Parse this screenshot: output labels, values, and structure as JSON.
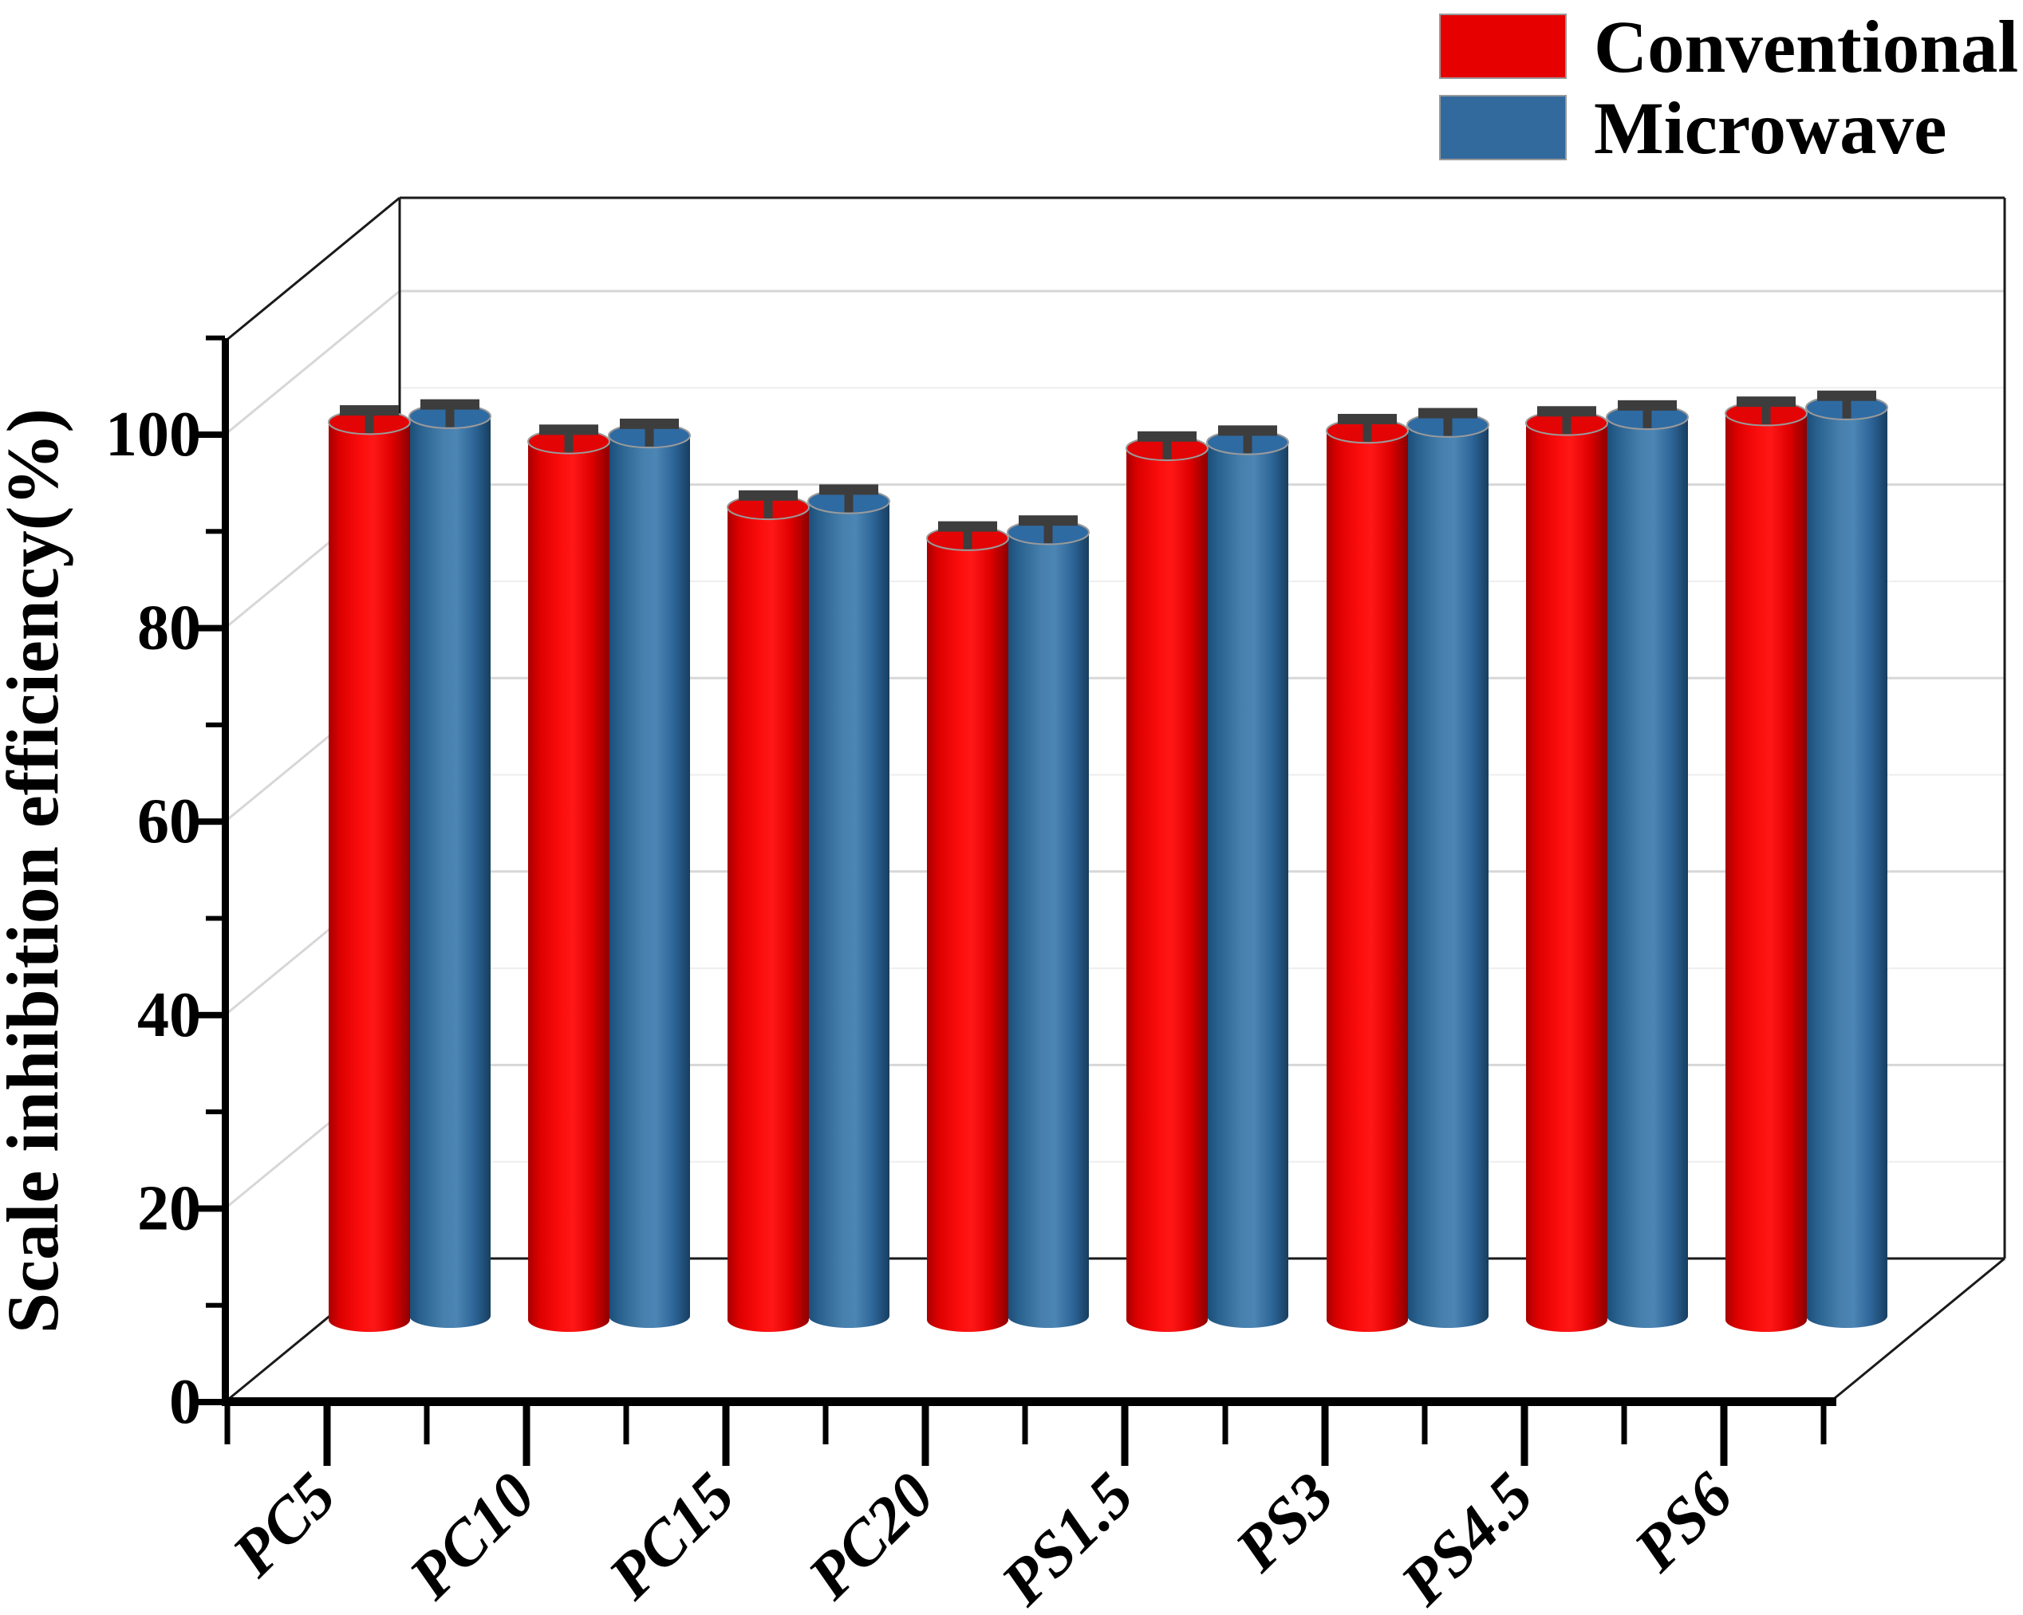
{
  "figure": {
    "kind": "scientific 3D cylinder bar chart",
    "background": "#ffffff"
  },
  "chart_data": {
    "type": "bar",
    "style": "3d-cylinder",
    "title": "",
    "xlabel": "",
    "ylabel": "Scale inhibition efficiency(%)",
    "categories": [
      "PC5",
      "PC10",
      "PC15",
      "PC20",
      "PS1.5",
      "PS3",
      "PS4.5",
      "PS6"
    ],
    "series": [
      {
        "name": "Conventional",
        "color": "#e60000",
        "values": [
          92.8,
          90.8,
          84.0,
          80.8,
          90.1,
          91.9,
          92.7,
          93.7
        ],
        "error": 0.6
      },
      {
        "name": "Microwave",
        "color": "#336a9e",
        "values": [
          93.0,
          91.0,
          84.2,
          81.0,
          90.3,
          92.1,
          92.9,
          93.9
        ],
        "error": 0.6
      }
    ],
    "ylim": [
      0,
      110
    ],
    "yticks": [
      0,
      20,
      40,
      60,
      80,
      100
    ],
    "ytick_labels": [
      "0",
      "20",
      "40",
      "60",
      "80",
      "100"
    ],
    "minor_ytick_values": [
      10,
      30,
      50,
      70,
      90,
      110
    ],
    "grid": true,
    "legend_position": "top-right"
  },
  "legend": {
    "items": [
      {
        "label": "Conventional",
        "color": "#e60000"
      },
      {
        "label": "Microwave",
        "color": "#336a9e"
      }
    ]
  },
  "colors": {
    "axis": "#000000",
    "box_edge": "#1a1a1a",
    "grid_major": "#d7d7d7",
    "grid_minor": "#eeeeee",
    "error_bar": "#3d3d3d",
    "red_gradient": [
      "#a80000",
      "#dd0000",
      "#fb0d0d",
      "#ff1717",
      "#df0000",
      "#8c0000"
    ],
    "red_top": "#e30505",
    "blue_gradient": [
      "#1c4c77",
      "#2a628f",
      "#477fad",
      "#4c86b4",
      "#2d6598",
      "#173e5f"
    ],
    "blue_top": "#2f6ba3",
    "ellipse_stroke": "#9a9a9a",
    "swatch_border": "#999999"
  }
}
